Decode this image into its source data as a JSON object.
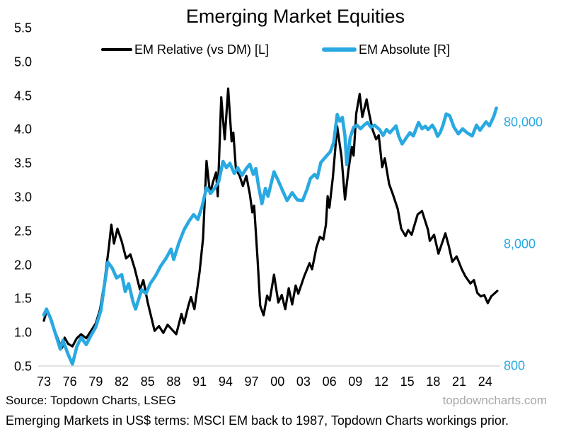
{
  "title": "Emerging Market Equities",
  "legend": {
    "relative_label": "EM Relative (vs DM) [L]",
    "absolute_label": "EM Absolute [R]"
  },
  "footer": {
    "source": "Source: Topdown Charts, LSEG",
    "watermark": "topdowncharts.com",
    "caption": "Emerging Markets in US$ terms: MSCI EM back to 1987, Topdown Charts workings prior."
  },
  "colors": {
    "relative_line": "#000000",
    "absolute_line": "#29A9E1",
    "axis_line": "#D9D9D9",
    "watermark_gray": "#A8A8A8"
  },
  "chart_data": {
    "type": "line",
    "title": "Emerging Market Equities",
    "grid": "off",
    "legend_position": "top",
    "x_range": [
      1973,
      2025.6
    ],
    "x_tick_years": [
      1973,
      1976,
      1979,
      1982,
      1985,
      1988,
      1991,
      1994,
      1997,
      2000,
      2003,
      2006,
      2009,
      2012,
      2015,
      2018,
      2021,
      2024
    ],
    "x_tick_labels": [
      "73",
      "76",
      "79",
      "82",
      "85",
      "88",
      "91",
      "94",
      "97",
      "00",
      "03",
      "06",
      "09",
      "12",
      "15",
      "18",
      "21",
      "24"
    ],
    "left_axis": {
      "scale": "linear",
      "range": [
        0.5,
        5.5
      ],
      "ticks": [
        5.5,
        5.0,
        4.5,
        4.0,
        3.5,
        3.0,
        2.5,
        2.0,
        1.5,
        1.0,
        0.5
      ],
      "tick_labels": [
        "5.5",
        "5.0",
        "4.5",
        "4.0",
        "3.5",
        "3.0",
        "2.5",
        "2.0",
        "1.5",
        "1.0",
        "0.5"
      ]
    },
    "right_axis": {
      "scale": "log",
      "tick_values": [
        80000,
        8000,
        800
      ],
      "tick_labels": [
        "80,000",
        "8,000",
        "800"
      ]
    },
    "series": [
      {
        "name": "EM Relative (vs DM) [L]",
        "axis": "left",
        "color": "#000000",
        "points": [
          [
            1973.0,
            1.18
          ],
          [
            1973.3,
            1.32
          ],
          [
            1973.8,
            1.22
          ],
          [
            1974.3,
            1.02
          ],
          [
            1974.8,
            0.85
          ],
          [
            1975.1,
            0.78
          ],
          [
            1975.4,
            0.93
          ],
          [
            1975.8,
            0.84
          ],
          [
            1976.3,
            0.8
          ],
          [
            1976.8,
            0.92
          ],
          [
            1977.3,
            0.98
          ],
          [
            1977.9,
            0.92
          ],
          [
            1978.4,
            1.02
          ],
          [
            1979.0,
            1.14
          ],
          [
            1979.5,
            1.35
          ],
          [
            1980.0,
            1.75
          ],
          [
            1980.5,
            2.25
          ],
          [
            1980.8,
            2.6
          ],
          [
            1981.1,
            2.32
          ],
          [
            1981.5,
            2.54
          ],
          [
            1982.0,
            2.35
          ],
          [
            1982.5,
            2.1
          ],
          [
            1983.0,
            2.16
          ],
          [
            1983.5,
            1.95
          ],
          [
            1984.1,
            1.64
          ],
          [
            1984.5,
            1.78
          ],
          [
            1985.0,
            1.45
          ],
          [
            1985.8,
            1.03
          ],
          [
            1986.3,
            1.1
          ],
          [
            1986.8,
            1.0
          ],
          [
            1987.3,
            1.12
          ],
          [
            1987.8,
            1.05
          ],
          [
            1988.3,
            0.98
          ],
          [
            1988.9,
            1.28
          ],
          [
            1989.2,
            1.14
          ],
          [
            1989.7,
            1.4
          ],
          [
            1990.0,
            1.53
          ],
          [
            1990.4,
            1.35
          ],
          [
            1991.0,
            1.9
          ],
          [
            1991.4,
            2.4
          ],
          [
            1991.8,
            3.54
          ],
          [
            1992.2,
            3.06
          ],
          [
            1992.6,
            3.25
          ],
          [
            1992.9,
            3.37
          ],
          [
            1993.1,
            3.02
          ],
          [
            1993.5,
            4.48
          ],
          [
            1993.9,
            3.86
          ],
          [
            1994.3,
            4.61
          ],
          [
            1994.7,
            3.83
          ],
          [
            1994.9,
            3.96
          ],
          [
            1995.2,
            3.41
          ],
          [
            1995.6,
            3.33
          ],
          [
            1996.0,
            3.17
          ],
          [
            1996.4,
            3.32
          ],
          [
            1996.8,
            3.05
          ],
          [
            1997.1,
            2.78
          ],
          [
            1997.3,
            2.88
          ],
          [
            1997.7,
            2.08
          ],
          [
            1998.0,
            1.4
          ],
          [
            1998.4,
            1.26
          ],
          [
            1998.8,
            1.55
          ],
          [
            1999.1,
            1.48
          ],
          [
            1999.6,
            1.86
          ],
          [
            2000.1,
            1.45
          ],
          [
            2000.5,
            1.56
          ],
          [
            2000.9,
            1.35
          ],
          [
            2001.3,
            1.66
          ],
          [
            2001.7,
            1.42
          ],
          [
            2002.1,
            1.7
          ],
          [
            2002.4,
            1.58
          ],
          [
            2003.1,
            1.84
          ],
          [
            2003.7,
            2.03
          ],
          [
            2004.0,
            1.94
          ],
          [
            2004.5,
            2.26
          ],
          [
            2004.9,
            2.42
          ],
          [
            2005.3,
            2.38
          ],
          [
            2005.6,
            2.6
          ],
          [
            2005.8,
            3.02
          ],
          [
            2006.0,
            2.85
          ],
          [
            2006.4,
            3.3
          ],
          [
            2006.9,
            4.05
          ],
          [
            2007.4,
            3.6
          ],
          [
            2007.8,
            2.97
          ],
          [
            2008.2,
            3.41
          ],
          [
            2008.6,
            3.75
          ],
          [
            2008.8,
            3.62
          ],
          [
            2009.1,
            4.24
          ],
          [
            2009.5,
            4.53
          ],
          [
            2009.8,
            4.19
          ],
          [
            2010.3,
            4.45
          ],
          [
            2010.6,
            4.24
          ],
          [
            2011.0,
            4.0
          ],
          [
            2011.4,
            3.86
          ],
          [
            2011.7,
            3.92
          ],
          [
            2012.1,
            3.45
          ],
          [
            2012.4,
            3.58
          ],
          [
            2012.9,
            3.2
          ],
          [
            2013.3,
            3.06
          ],
          [
            2013.9,
            2.83
          ],
          [
            2014.3,
            2.54
          ],
          [
            2014.8,
            2.43
          ],
          [
            2015.1,
            2.52
          ],
          [
            2015.5,
            2.45
          ],
          [
            2016.2,
            2.75
          ],
          [
            2016.7,
            2.8
          ],
          [
            2017.4,
            2.52
          ],
          [
            2017.6,
            2.36
          ],
          [
            2018.1,
            2.45
          ],
          [
            2018.6,
            2.17
          ],
          [
            2019.4,
            2.47
          ],
          [
            2019.8,
            2.28
          ],
          [
            2020.2,
            2.05
          ],
          [
            2020.7,
            2.13
          ],
          [
            2021.3,
            1.94
          ],
          [
            2021.7,
            1.84
          ],
          [
            2022.3,
            1.73
          ],
          [
            2022.7,
            1.78
          ],
          [
            2023.1,
            1.59
          ],
          [
            2023.5,
            1.54
          ],
          [
            2023.9,
            1.56
          ],
          [
            2024.3,
            1.44
          ],
          [
            2024.7,
            1.54
          ],
          [
            2025.4,
            1.62
          ]
        ]
      },
      {
        "name": "EM Absolute [R]",
        "axis": "right",
        "color": "#29A9E1",
        "points": [
          [
            1973.0,
            2100
          ],
          [
            1973.3,
            2350
          ],
          [
            1973.8,
            1950
          ],
          [
            1974.3,
            1500
          ],
          [
            1974.9,
            1100
          ],
          [
            1975.2,
            1300
          ],
          [
            1975.8,
            1000
          ],
          [
            1976.3,
            830
          ],
          [
            1976.8,
            1150
          ],
          [
            1977.3,
            1370
          ],
          [
            1977.9,
            1200
          ],
          [
            1978.5,
            1450
          ],
          [
            1979.0,
            1670
          ],
          [
            1979.6,
            2300
          ],
          [
            1980.0,
            3700
          ],
          [
            1980.4,
            5700
          ],
          [
            1980.9,
            5100
          ],
          [
            1981.4,
            4230
          ],
          [
            1982.0,
            4500
          ],
          [
            1982.4,
            3270
          ],
          [
            1982.8,
            3800
          ],
          [
            1983.3,
            2700
          ],
          [
            1983.6,
            2350
          ],
          [
            1984.3,
            3380
          ],
          [
            1984.8,
            3150
          ],
          [
            1985.3,
            3800
          ],
          [
            1985.9,
            4400
          ],
          [
            1986.5,
            5300
          ],
          [
            1987.1,
            6100
          ],
          [
            1987.7,
            7300
          ],
          [
            1988.0,
            6000
          ],
          [
            1988.6,
            8200
          ],
          [
            1989.2,
            10500
          ],
          [
            1989.8,
            12500
          ],
          [
            1990.3,
            14000
          ],
          [
            1990.8,
            12800
          ],
          [
            1991.3,
            16500
          ],
          [
            1991.8,
            23300
          ],
          [
            1992.3,
            21000
          ],
          [
            1992.8,
            23500
          ],
          [
            1993.2,
            26000
          ],
          [
            1993.7,
            38300
          ],
          [
            1994.1,
            34000
          ],
          [
            1994.5,
            37000
          ],
          [
            1995.0,
            30500
          ],
          [
            1995.4,
            34000
          ],
          [
            1995.9,
            29500
          ],
          [
            1996.4,
            33500
          ],
          [
            1996.8,
            36300
          ],
          [
            1997.2,
            30000
          ],
          [
            1997.5,
            33500
          ],
          [
            1997.8,
            24200
          ],
          [
            1998.2,
            17200
          ],
          [
            1998.6,
            23000
          ],
          [
            1998.9,
            19800
          ],
          [
            1999.6,
            31500
          ],
          [
            2000.1,
            26500
          ],
          [
            2000.6,
            22000
          ],
          [
            2001.1,
            18300
          ],
          [
            2001.7,
            21200
          ],
          [
            2002.3,
            18500
          ],
          [
            2002.9,
            18300
          ],
          [
            2003.4,
            22500
          ],
          [
            2003.8,
            27700
          ],
          [
            2004.3,
            30000
          ],
          [
            2004.6,
            28000
          ],
          [
            2005.0,
            37500
          ],
          [
            2005.6,
            42000
          ],
          [
            2006.1,
            46000
          ],
          [
            2006.5,
            55000
          ],
          [
            2006.9,
            93000
          ],
          [
            2007.2,
            82000
          ],
          [
            2007.5,
            88000
          ],
          [
            2007.8,
            62000
          ],
          [
            2008.0,
            36000
          ],
          [
            2008.4,
            60000
          ],
          [
            2008.8,
            73000
          ],
          [
            2009.2,
            76000
          ],
          [
            2009.6,
            71000
          ],
          [
            2010.0,
            76000
          ],
          [
            2010.4,
            80000
          ],
          [
            2010.8,
            73000
          ],
          [
            2011.2,
            76000
          ],
          [
            2011.8,
            70000
          ],
          [
            2012.2,
            62500
          ],
          [
            2012.6,
            70000
          ],
          [
            2013.0,
            66000
          ],
          [
            2013.4,
            71000
          ],
          [
            2013.7,
            75000
          ],
          [
            2014.0,
            62000
          ],
          [
            2014.4,
            53300
          ],
          [
            2014.9,
            60000
          ],
          [
            2015.3,
            66000
          ],
          [
            2015.7,
            62000
          ],
          [
            2016.3,
            80000
          ],
          [
            2016.7,
            71000
          ],
          [
            2017.1,
            74500
          ],
          [
            2017.4,
            70000
          ],
          [
            2017.9,
            76000
          ],
          [
            2018.2,
            70000
          ],
          [
            2018.5,
            61500
          ],
          [
            2018.8,
            66000
          ],
          [
            2019.1,
            75000
          ],
          [
            2019.5,
            94000
          ],
          [
            2019.9,
            91000
          ],
          [
            2020.4,
            73000
          ],
          [
            2020.9,
            64500
          ],
          [
            2021.4,
            71000
          ],
          [
            2021.9,
            66000
          ],
          [
            2022.5,
            62000
          ],
          [
            2023.0,
            76000
          ],
          [
            2023.4,
            69000
          ],
          [
            2024.1,
            81000
          ],
          [
            2024.5,
            75000
          ],
          [
            2025.0,
            90000
          ],
          [
            2025.3,
            105000
          ]
        ]
      }
    ]
  }
}
